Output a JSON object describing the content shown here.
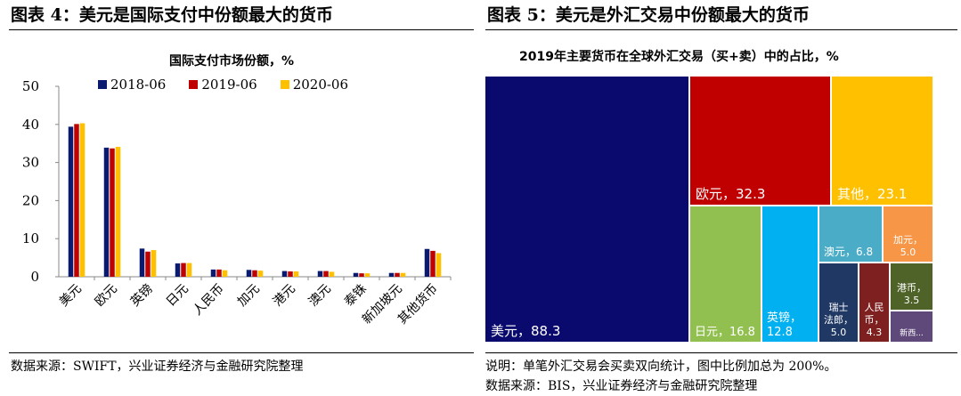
{
  "left": {
    "figure_title": "图表 4：美元是国际支付中份额最大的货币",
    "source": "数据来源：SWIFT，兴业证券经济与金融研究院整理"
  },
  "right": {
    "figure_title": "图表 5：美元是外汇交易中份额最大的货币",
    "note": "说明：单笔外汇交易会买卖双向统计，图中比例加总为 200%。",
    "source": "数据来源：BIS，兴业证券经济与金融研究院整理"
  },
  "chart_data": [
    {
      "type": "bar",
      "title": "国际支付市场份额，%",
      "categories": [
        "美元",
        "欧元",
        "英镑",
        "日元",
        "人民币",
        "加元",
        "港元",
        "澳元",
        "泰铢",
        "新加坡元",
        "其他货币"
      ],
      "series": [
        {
          "name": "2018-06",
          "color": "#0a1a6e",
          "values": [
            39.4,
            33.9,
            7.4,
            3.5,
            1.9,
            1.8,
            1.5,
            1.5,
            1.0,
            1.0,
            7.3
          ]
        },
        {
          "name": "2019-06",
          "color": "#c00000",
          "values": [
            40.1,
            33.7,
            6.6,
            3.6,
            1.9,
            1.7,
            1.4,
            1.5,
            0.9,
            1.0,
            6.8
          ]
        },
        {
          "name": "2020-06",
          "color": "#ffc000",
          "values": [
            40.3,
            34.1,
            7.0,
            3.6,
            1.7,
            1.6,
            1.4,
            1.3,
            0.9,
            1.0,
            6.2
          ]
        }
      ],
      "ylim": [
        0,
        50
      ],
      "yticks": [
        0,
        10,
        20,
        30,
        40,
        50
      ],
      "xlabel": "",
      "ylabel": ""
    },
    {
      "type": "treemap",
      "title": "2019年主要货币在全球外汇交易（买+卖）中的占比，%",
      "items": [
        {
          "name": "美元",
          "value": 88.3,
          "label": "美元，88.3",
          "color": "#0a0a6e"
        },
        {
          "name": "欧元",
          "value": 32.3,
          "label": "欧元，32.3",
          "color": "#c00000"
        },
        {
          "name": "其他",
          "value": 23.1,
          "label": "其他，23.1",
          "color": "#ffc000"
        },
        {
          "name": "日元",
          "value": 16.8,
          "label": "日元，16.8",
          "color": "#92c050"
        },
        {
          "name": "英镑",
          "value": 12.8,
          "label": "英镑，12.8",
          "color": "#00b0f0"
        },
        {
          "name": "澳元",
          "value": 6.8,
          "label": "澳元，6.8",
          "color": "#4aacc6"
        },
        {
          "name": "加元",
          "value": 5.0,
          "label": "加元，5.0",
          "color": "#f79646"
        },
        {
          "name": "瑞士法郎",
          "value": 5.0,
          "label": "瑞士法郎，5.0",
          "color": "#1f3864"
        },
        {
          "name": "人民币",
          "value": 4.3,
          "label": "人民币，4.3",
          "color": "#7f2020"
        },
        {
          "name": "港币",
          "value": 3.5,
          "label": "港币，3.5",
          "color": "#4f6228"
        },
        {
          "name": "新西兰元",
          "value": 2.1,
          "label": "新西...",
          "color": "#5f497a"
        }
      ]
    }
  ]
}
